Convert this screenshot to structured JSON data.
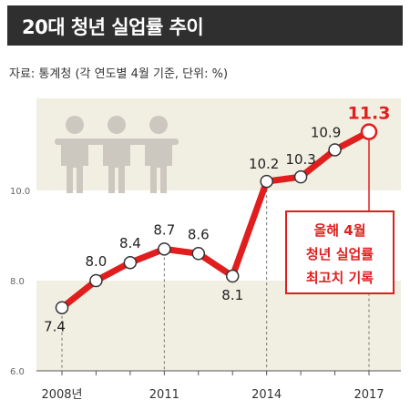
{
  "title": "20대 청년 실업률 추이",
  "source": "자료: 통계청 (각 연도별 4월 기준, 단위: %)",
  "colors": {
    "line": "#e01e1e",
    "band": "#f1eee2",
    "title_bg": "#2f2f2f",
    "icon": "#cdc8bf"
  },
  "icon": "people-group-icon",
  "chart_data": {
    "type": "line",
    "x": [
      2008,
      2009,
      2010,
      2011,
      2012,
      2013,
      2014,
      2015,
      2016,
      2017
    ],
    "values": [
      7.4,
      8.0,
      8.4,
      8.7,
      8.6,
      8.1,
      10.2,
      10.3,
      10.9,
      11.3
    ],
    "value_labels": [
      "7.4",
      "8.0",
      "8.4",
      "8.7",
      "8.6",
      "8.1",
      "10.2",
      "10.3",
      "10.9",
      "11.3"
    ],
    "x_tick_values": [
      2008,
      2011,
      2014,
      2017
    ],
    "x_tick_labels": [
      "2008년",
      "2011",
      "2014",
      "2017"
    ],
    "y_tick_values": [
      6.0,
      8.0,
      10.0
    ],
    "y_tick_labels": [
      "6.0",
      "8.0",
      "10.0"
    ],
    "ylim": [
      6.0,
      12.0
    ],
    "annotation": {
      "lines": [
        "올해 4월",
        "청년 실업률",
        "최고치 기록"
      ],
      "target_x": 2017
    }
  }
}
